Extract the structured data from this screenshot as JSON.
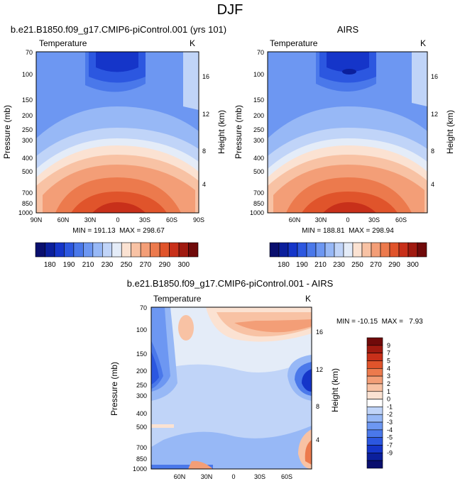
{
  "page_title": "DJF",
  "chart_data": [
    {
      "type": "contour",
      "title": "b.e21.B1850.f09_g17.CMIP6-piControl.001 (yrs 101)",
      "subtitle_left": "Temperature",
      "subtitle_right": "K",
      "ylabel": "Pressure (mb)",
      "ylabel_right": "Height (km)",
      "x_ticks": [
        "90N",
        "60N",
        "30N",
        "0",
        "30S",
        "60S",
        "90S"
      ],
      "y_ticks": [
        "70",
        "100",
        "150",
        "200",
        "250",
        "300",
        "400",
        "500",
        "700",
        "850",
        "1000"
      ],
      "y_right_ticks": [
        "16",
        "12",
        "8",
        "4"
      ],
      "stats": "MIN = 191.13  MAX = 298.67",
      "min": 191.13,
      "max": 298.67
    },
    {
      "type": "contour",
      "title": "AIRS",
      "subtitle_left": "Temperature",
      "subtitle_right": "K",
      "ylabel": "Pressure (mb)",
      "ylabel_right": "Height (km)",
      "x_ticks": [
        "60N",
        "30N",
        "0",
        "30S",
        "60S"
      ],
      "y_ticks": [
        "70",
        "100",
        "150",
        "200",
        "250",
        "300",
        "400",
        "500",
        "700",
        "850",
        "1000"
      ],
      "y_right_ticks": [
        "16",
        "12",
        "8",
        "4"
      ],
      "stats": "MIN = 188.81  MAX = 298.94",
      "min": 188.81,
      "max": 298.94
    },
    {
      "type": "contour",
      "title": "b.e21.B1850.f09_g17.CMIP6-piControl.001 - AIRS",
      "subtitle_left": "Temperature",
      "subtitle_right": "K",
      "ylabel": "Pressure (mb)",
      "ylabel_right": "Height (km)",
      "x_ticks": [
        "60N",
        "30N",
        "0",
        "30S",
        "60S"
      ],
      "y_ticks": [
        "70",
        "100",
        "150",
        "200",
        "250",
        "300",
        "400",
        "500",
        "700",
        "850",
        "1000"
      ],
      "y_right_ticks": [
        "16",
        "12",
        "8",
        "4"
      ],
      "stats": "MIN = -10.15  MAX =   7.93",
      "min": -10.15,
      "max": 7.93
    }
  ],
  "colorbar_main": {
    "labels": [
      "180",
      "190",
      "210",
      "230",
      "250",
      "270",
      "290",
      "300"
    ],
    "colors": [
      "#0a0f6e",
      "#0b1f9c",
      "#1535c9",
      "#2c57e0",
      "#4a78ea",
      "#6d97f2",
      "#97b8f6",
      "#c0d4f8",
      "#e4ecf8",
      "#fbe2d2",
      "#f8c2a4",
      "#f39e77",
      "#ec7a4d",
      "#e0542b",
      "#c8301a",
      "#a01a10",
      "#700a0a"
    ]
  },
  "colorbar_diff": {
    "labels": [
      "9",
      "7",
      "5",
      "4",
      "3",
      "2",
      "1",
      "0",
      "-1",
      "-2",
      "-3",
      "-4",
      "-5",
      "-7",
      "-9"
    ],
    "colors": [
      "#700a0a",
      "#a01a10",
      "#c8301a",
      "#e0542b",
      "#ec7a4d",
      "#f39e77",
      "#f8c2a4",
      "#fbe2d2",
      "#ffffff",
      "#c0d4f8",
      "#97b8f6",
      "#6d97f2",
      "#4a78ea",
      "#2c57e0",
      "#1535c9",
      "#0b1f9c",
      "#0a0f6e"
    ]
  }
}
